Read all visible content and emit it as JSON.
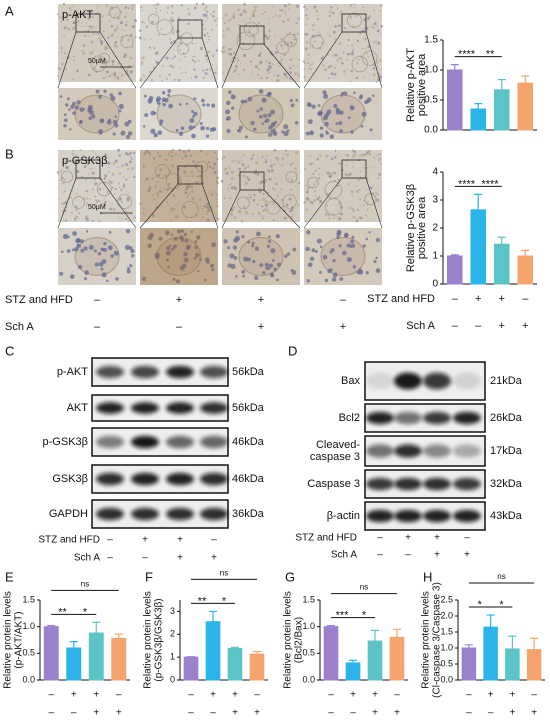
{
  "panel_letters": [
    "A",
    "B",
    "C",
    "D"
  ],
  "micrographs": {
    "stains": [
      "p-AKT",
      "p-GSK3β"
    ],
    "scale": "50μM",
    "treatments": [
      {
        "label": "STZ and HFD",
        "signs": [
          "–",
          "+",
          "+",
          "–"
        ]
      },
      {
        "label": "Sch A",
        "signs": [
          "–",
          "–",
          "+",
          "+"
        ]
      }
    ]
  },
  "blots": [
    {
      "rows": [
        {
          "label": "p-AKT",
          "size": "56kDa"
        },
        {
          "label": "AKT",
          "size": "56kDa"
        },
        {
          "label": "p-GSK3β",
          "size": "46kDa"
        },
        {
          "label": "GSK3β",
          "size": "46kDa"
        },
        {
          "label": "GAPDH",
          "size": "36kDa"
        }
      ],
      "treatments": [
        {
          "label": "STZ and HFD",
          "signs": [
            "–",
            "+",
            "+",
            "–"
          ]
        },
        {
          "label": "Sch A",
          "signs": [
            "–",
            "–",
            "+",
            "+"
          ]
        }
      ]
    },
    {
      "rows": [
        {
          "label": "Bax",
          "size": "21kDa"
        },
        {
          "label": "Bcl2",
          "size": "26kDa"
        },
        {
          "label": [
            "Cleaved-",
            "caspase 3"
          ],
          "size": "17kDa"
        },
        {
          "label": "Caspase 3",
          "size": "32kDa"
        },
        {
          "label": "β-actin",
          "size": "43kDa"
        }
      ],
      "treatments": [
        {
          "label": "STZ and HFD",
          "signs": [
            "–",
            "+",
            "+",
            "–"
          ]
        },
        {
          "label": "Sch A",
          "signs": [
            "–",
            "–",
            "+",
            "+"
          ]
        }
      ]
    }
  ],
  "chart_data": [
    {
      "type": "bar",
      "ylabel": [
        "Relative p-AKT",
        "positive area"
      ],
      "categories": [
        null,
        null,
        null,
        null
      ],
      "values": [
        1.0,
        0.35,
        0.67,
        0.78
      ],
      "errors": [
        0.09,
        0.09,
        0.17,
        0.12
      ],
      "colors": [
        "#9b80cc",
        "#2ab4ea",
        "#5cc3c6",
        "#f6a46e"
      ],
      "ylim": [
        0,
        1.5
      ],
      "yticks": [
        {
          "value": 0,
          "label": "0.0"
        },
        {
          "value": 0.5,
          "label": "0.5"
        },
        {
          "value": 1,
          "label": "1.0"
        },
        {
          "value": 1.5,
          "label": "1.5"
        }
      ],
      "significance": [
        {
          "bars": [
            0,
            1
          ],
          "label": "****"
        },
        {
          "bars": [
            1,
            2
          ],
          "label": "**"
        }
      ]
    },
    {
      "type": "bar",
      "ylabel": [
        "Relative p-GSK3β",
        "positive area"
      ],
      "categories": [
        null,
        null,
        null,
        null
      ],
      "values": [
        1.0,
        2.65,
        1.42,
        1.0
      ],
      "errors": [
        0.04,
        0.55,
        0.25,
        0.2
      ],
      "colors": [
        "#9b80cc",
        "#2ab4ea",
        "#5cc3c6",
        "#f6a46e"
      ],
      "ylim": [
        0,
        4
      ],
      "yticks": [
        0,
        1,
        2,
        3,
        4
      ],
      "significance": [
        {
          "bars": [
            0,
            1
          ],
          "label": "****"
        },
        {
          "bars": [
            1,
            2
          ],
          "label": "****"
        }
      ],
      "treatments": [
        {
          "label": "STZ and HFD",
          "signs": [
            "–",
            "+",
            "+",
            "–"
          ]
        },
        {
          "label": "Sch A",
          "signs": [
            "–",
            "–",
            "+",
            "+"
          ]
        }
      ]
    },
    {
      "type": "bar",
      "panel": "E",
      "ylabel": [
        "Relative protein levels",
        "(p-AKT/AKT)"
      ],
      "categories": [
        null,
        null,
        null,
        null
      ],
      "values": [
        1.0,
        0.6,
        0.88,
        0.78
      ],
      "errors": [
        0.02,
        0.12,
        0.2,
        0.08
      ],
      "colors": [
        "#9b80cc",
        "#2ab4ea",
        "#5cc3c6",
        "#f6a46e"
      ],
      "ylim": [
        0,
        1.5
      ],
      "yticks": [
        {
          "value": 0,
          "label": "0.0"
        },
        {
          "value": 0.5,
          "label": "0.5"
        },
        {
          "value": 1,
          "label": "1.0"
        },
        {
          "value": 1.5,
          "label": "1.5"
        }
      ],
      "significance": [
        {
          "bars": [
            0,
            1
          ],
          "label": "**"
        },
        {
          "bars": [
            1,
            2
          ],
          "label": "*"
        },
        {
          "bars": [
            0,
            3
          ],
          "label": "ns"
        }
      ],
      "treatments": [
        {
          "signs": [
            "–",
            "+",
            "+",
            "–"
          ]
        },
        {
          "signs": [
            "–",
            "–",
            "+",
            "+"
          ]
        }
      ]
    },
    {
      "type": "bar",
      "panel": "F",
      "ylabel": [
        "Relative protein levels",
        "(p-GSK3β/GSK3β)"
      ],
      "categories": [
        null,
        null,
        null,
        null
      ],
      "values": [
        1.0,
        2.55,
        1.38,
        1.13
      ],
      "errors": [
        0.02,
        0.45,
        0.05,
        0.12
      ],
      "colors": [
        "#9b80cc",
        "#2ab4ea",
        "#5cc3c6",
        "#f6a46e"
      ],
      "ylim": [
        0,
        3.5
      ],
      "yticks": [
        0,
        1,
        2,
        3
      ],
      "significance": [
        {
          "bars": [
            0,
            1
          ],
          "label": "**"
        },
        {
          "bars": [
            1,
            2
          ],
          "label": "*"
        },
        {
          "bars": [
            0,
            3
          ],
          "label": "ns"
        }
      ],
      "treatments": [
        {
          "signs": [
            "–",
            "+",
            "+",
            "–"
          ]
        },
        {
          "signs": [
            "–",
            "–",
            "+",
            "+"
          ]
        }
      ]
    },
    {
      "type": "bar",
      "panel": "G",
      "ylabel": [
        "Relative protein levels",
        "(Bcl2/Bax)"
      ],
      "categories": [
        null,
        null,
        null,
        null
      ],
      "values": [
        1.0,
        0.32,
        0.73,
        0.8
      ],
      "errors": [
        0.02,
        0.05,
        0.2,
        0.15
      ],
      "colors": [
        "#9b80cc",
        "#2ab4ea",
        "#5cc3c6",
        "#f6a46e"
      ],
      "ylim": [
        0,
        1.5
      ],
      "yticks": [
        {
          "value": 0,
          "label": "0.0"
        },
        {
          "value": 0.5,
          "label": "0.5"
        },
        {
          "value": 1,
          "label": "1.0"
        },
        {
          "value": 1.5,
          "label": "1.5"
        }
      ],
      "significance": [
        {
          "bars": [
            0,
            1
          ],
          "label": "***"
        },
        {
          "bars": [
            1,
            2
          ],
          "label": "*"
        },
        {
          "bars": [
            0,
            3
          ],
          "label": "ns"
        }
      ],
      "treatments": [
        {
          "signs": [
            "–",
            "+",
            "+",
            "–"
          ]
        },
        {
          "signs": [
            "–",
            "–",
            "+",
            "+"
          ]
        }
      ]
    },
    {
      "type": "bar",
      "panel": "H",
      "ylabel": [
        "Relative protein levels",
        "(Cl-caspase 3/Caspase 3)"
      ],
      "categories": [
        null,
        null,
        null,
        null
      ],
      "values": [
        1.0,
        1.65,
        0.97,
        0.95
      ],
      "errors": [
        0.1,
        0.38,
        0.4,
        0.35
      ],
      "colors": [
        "#9b80cc",
        "#2ab4ea",
        "#5cc3c6",
        "#f6a46e"
      ],
      "ylim": [
        0,
        2.5
      ],
      "yticks": [
        {
          "value": 0,
          "label": "0.0"
        },
        {
          "value": 0.5,
          "label": "0.5"
        },
        {
          "value": 1,
          "label": "1.0"
        },
        {
          "value": 1.5,
          "label": "1.5"
        },
        {
          "value": 2,
          "label": "2.0"
        },
        {
          "value": 2.5,
          "label": "2.5"
        }
      ],
      "significance": [
        {
          "bars": [
            0,
            1
          ],
          "label": "*"
        },
        {
          "bars": [
            1,
            2
          ],
          "label": "*"
        },
        {
          "bars": [
            0,
            3
          ],
          "label": "ns"
        }
      ],
      "treatments": [
        {
          "signs": [
            "–",
            "+",
            "+",
            "–"
          ]
        },
        {
          "signs": [
            "–",
            "–",
            "+",
            "+"
          ]
        }
      ]
    }
  ]
}
